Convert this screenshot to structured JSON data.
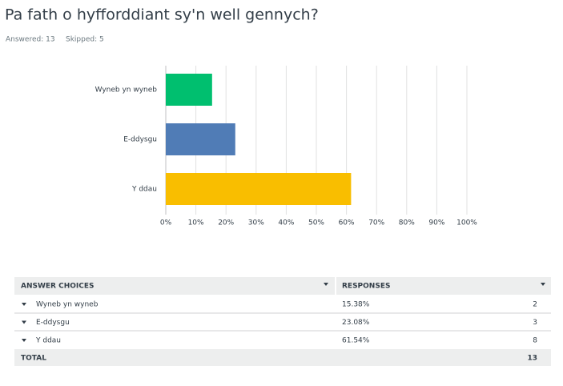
{
  "question": {
    "title": "Pa fath o hyfforddiant sy'n well gennych?",
    "answered": "Answered: 13",
    "skipped": "Skipped: 5"
  },
  "chart_data": {
    "type": "hbar",
    "categories": [
      "Wyneb yn wyneb",
      "E-ddysgu",
      "Y ddau"
    ],
    "values": [
      15.38,
      23.08,
      61.54
    ],
    "colors": [
      "#00bf6f",
      "#507cb6",
      "#f9be00"
    ],
    "xlim": [
      0,
      100
    ],
    "xticks": [
      {
        "value": 0,
        "label": "0%"
      },
      {
        "value": 10,
        "label": "10%"
      },
      {
        "value": 20,
        "label": "20%"
      },
      {
        "value": 30,
        "label": "30%"
      },
      {
        "value": 40,
        "label": "40%"
      },
      {
        "value": 50,
        "label": "50%"
      },
      {
        "value": 60,
        "label": "60%"
      },
      {
        "value": 70,
        "label": "70%"
      },
      {
        "value": 80,
        "label": "80%"
      },
      {
        "value": 90,
        "label": "90%"
      },
      {
        "value": 100,
        "label": "100%"
      }
    ],
    "grid": true
  },
  "table": {
    "header": [
      "ANSWER CHOICES",
      "RESPONSES"
    ],
    "rows": [
      [
        "Wyneb yn wyneb",
        "15.38%",
        "2"
      ],
      [
        "E-ddysgu",
        "23.08%",
        "3"
      ],
      [
        "Y ddau",
        "61.54%",
        "8"
      ]
    ],
    "total": [
      "TOTAL",
      "13"
    ]
  }
}
